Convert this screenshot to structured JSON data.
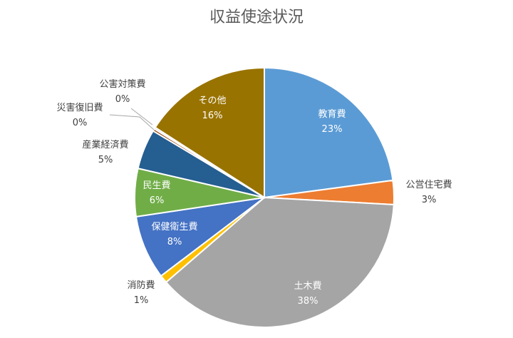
{
  "chart_data": {
    "type": "pie",
    "title": "収益使途状況",
    "slices": [
      {
        "name": "教育費",
        "value": 23,
        "percent_label": "23%",
        "color": "#5B9BD5"
      },
      {
        "name": "公営住宅費",
        "value": 3,
        "percent_label": "3%",
        "color": "#ED7D31"
      },
      {
        "name": "土木費",
        "value": 38,
        "percent_label": "38%",
        "color": "#A5A5A5"
      },
      {
        "name": "消防費",
        "value": 1,
        "percent_label": "1%",
        "color": "#FFC000"
      },
      {
        "name": "保健衛生費",
        "value": 8,
        "percent_label": "8%",
        "color": "#4472C4"
      },
      {
        "name": "民生費",
        "value": 6,
        "percent_label": "6%",
        "color": "#70AD47"
      },
      {
        "name": "産業経済費",
        "value": 5,
        "percent_label": "5%",
        "color": "#255E91"
      },
      {
        "name": "災害復旧費",
        "value": 0.3,
        "percent_label": "0%",
        "color": "#9E480E"
      },
      {
        "name": "公害対策費",
        "value": 0.2,
        "percent_label": "0%",
        "color": "#636363"
      },
      {
        "name": "その他",
        "value": 16,
        "percent_label": "16%",
        "color": "#997300"
      }
    ],
    "start_angle_deg": 0,
    "direction": "clockwise"
  }
}
